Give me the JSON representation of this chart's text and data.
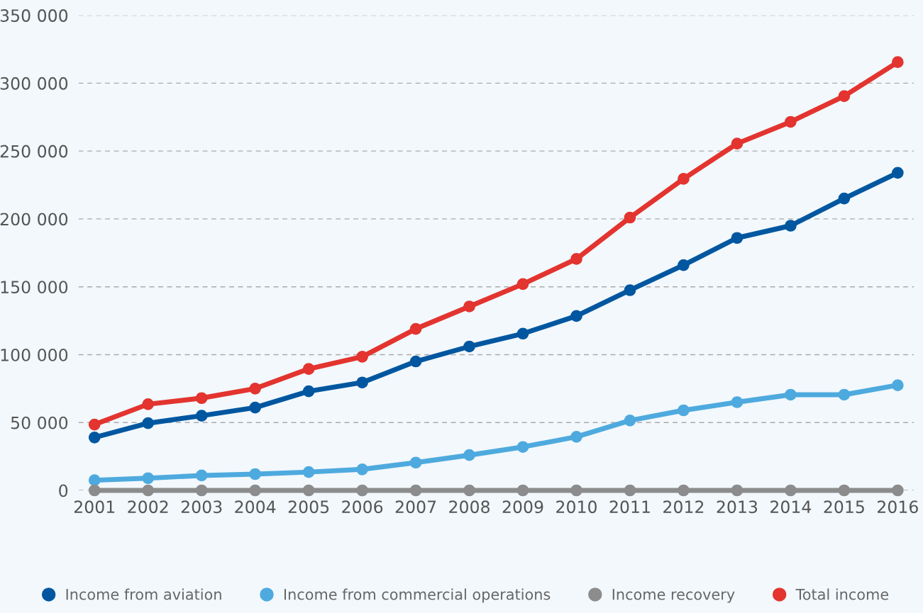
{
  "chart_data": {
    "type": "line",
    "categories": [
      "2001",
      "2002",
      "2003",
      "2004",
      "2005",
      "2006",
      "2007",
      "2008",
      "2009",
      "2010",
      "2011",
      "2012",
      "2013",
      "2014",
      "2015",
      "2016"
    ],
    "series": [
      {
        "name": "Income from aviation",
        "color": "#0057a0",
        "values": [
          39000,
          49500,
          55000,
          61000,
          73000,
          79500,
          95000,
          106000,
          115500,
          128500,
          147500,
          166000,
          186000,
          195000,
          215000,
          234000
        ]
      },
      {
        "name": "Income from commercial operations",
        "color": "#4eaade",
        "values": [
          7500,
          9000,
          11000,
          12000,
          13500,
          15500,
          20500,
          26000,
          32000,
          39500,
          51500,
          59000,
          65000,
          70500,
          70500,
          77500
        ]
      },
      {
        "name": "Income recovery",
        "color": "#8c8c8c",
        "values": [
          0,
          0,
          0,
          0,
          0,
          0,
          0,
          0,
          0,
          0,
          0,
          0,
          0,
          0,
          0,
          0
        ]
      },
      {
        "name": "Total income",
        "color": "#e3342f",
        "values": [
          48500,
          63500,
          68000,
          75000,
          89500,
          98500,
          119000,
          135500,
          152000,
          170500,
          201000,
          229500,
          255500,
          271500,
          290500,
          315500
        ]
      }
    ],
    "ylim": [
      0,
      350000
    ],
    "yticks": [
      {
        "value": 0,
        "label": "0"
      },
      {
        "value": 50000,
        "label": "50 000"
      },
      {
        "value": 100000,
        "label": "100 000"
      },
      {
        "value": 150000,
        "label": "150 000"
      },
      {
        "value": 200000,
        "label": "200 000"
      },
      {
        "value": 250000,
        "label": "250 000"
      },
      {
        "value": 300000,
        "label": "300 000"
      },
      {
        "value": 350000,
        "label": "350 000"
      }
    ],
    "grid": "y",
    "legend": "bottom",
    "marker": "circle",
    "line_style": "solid"
  }
}
